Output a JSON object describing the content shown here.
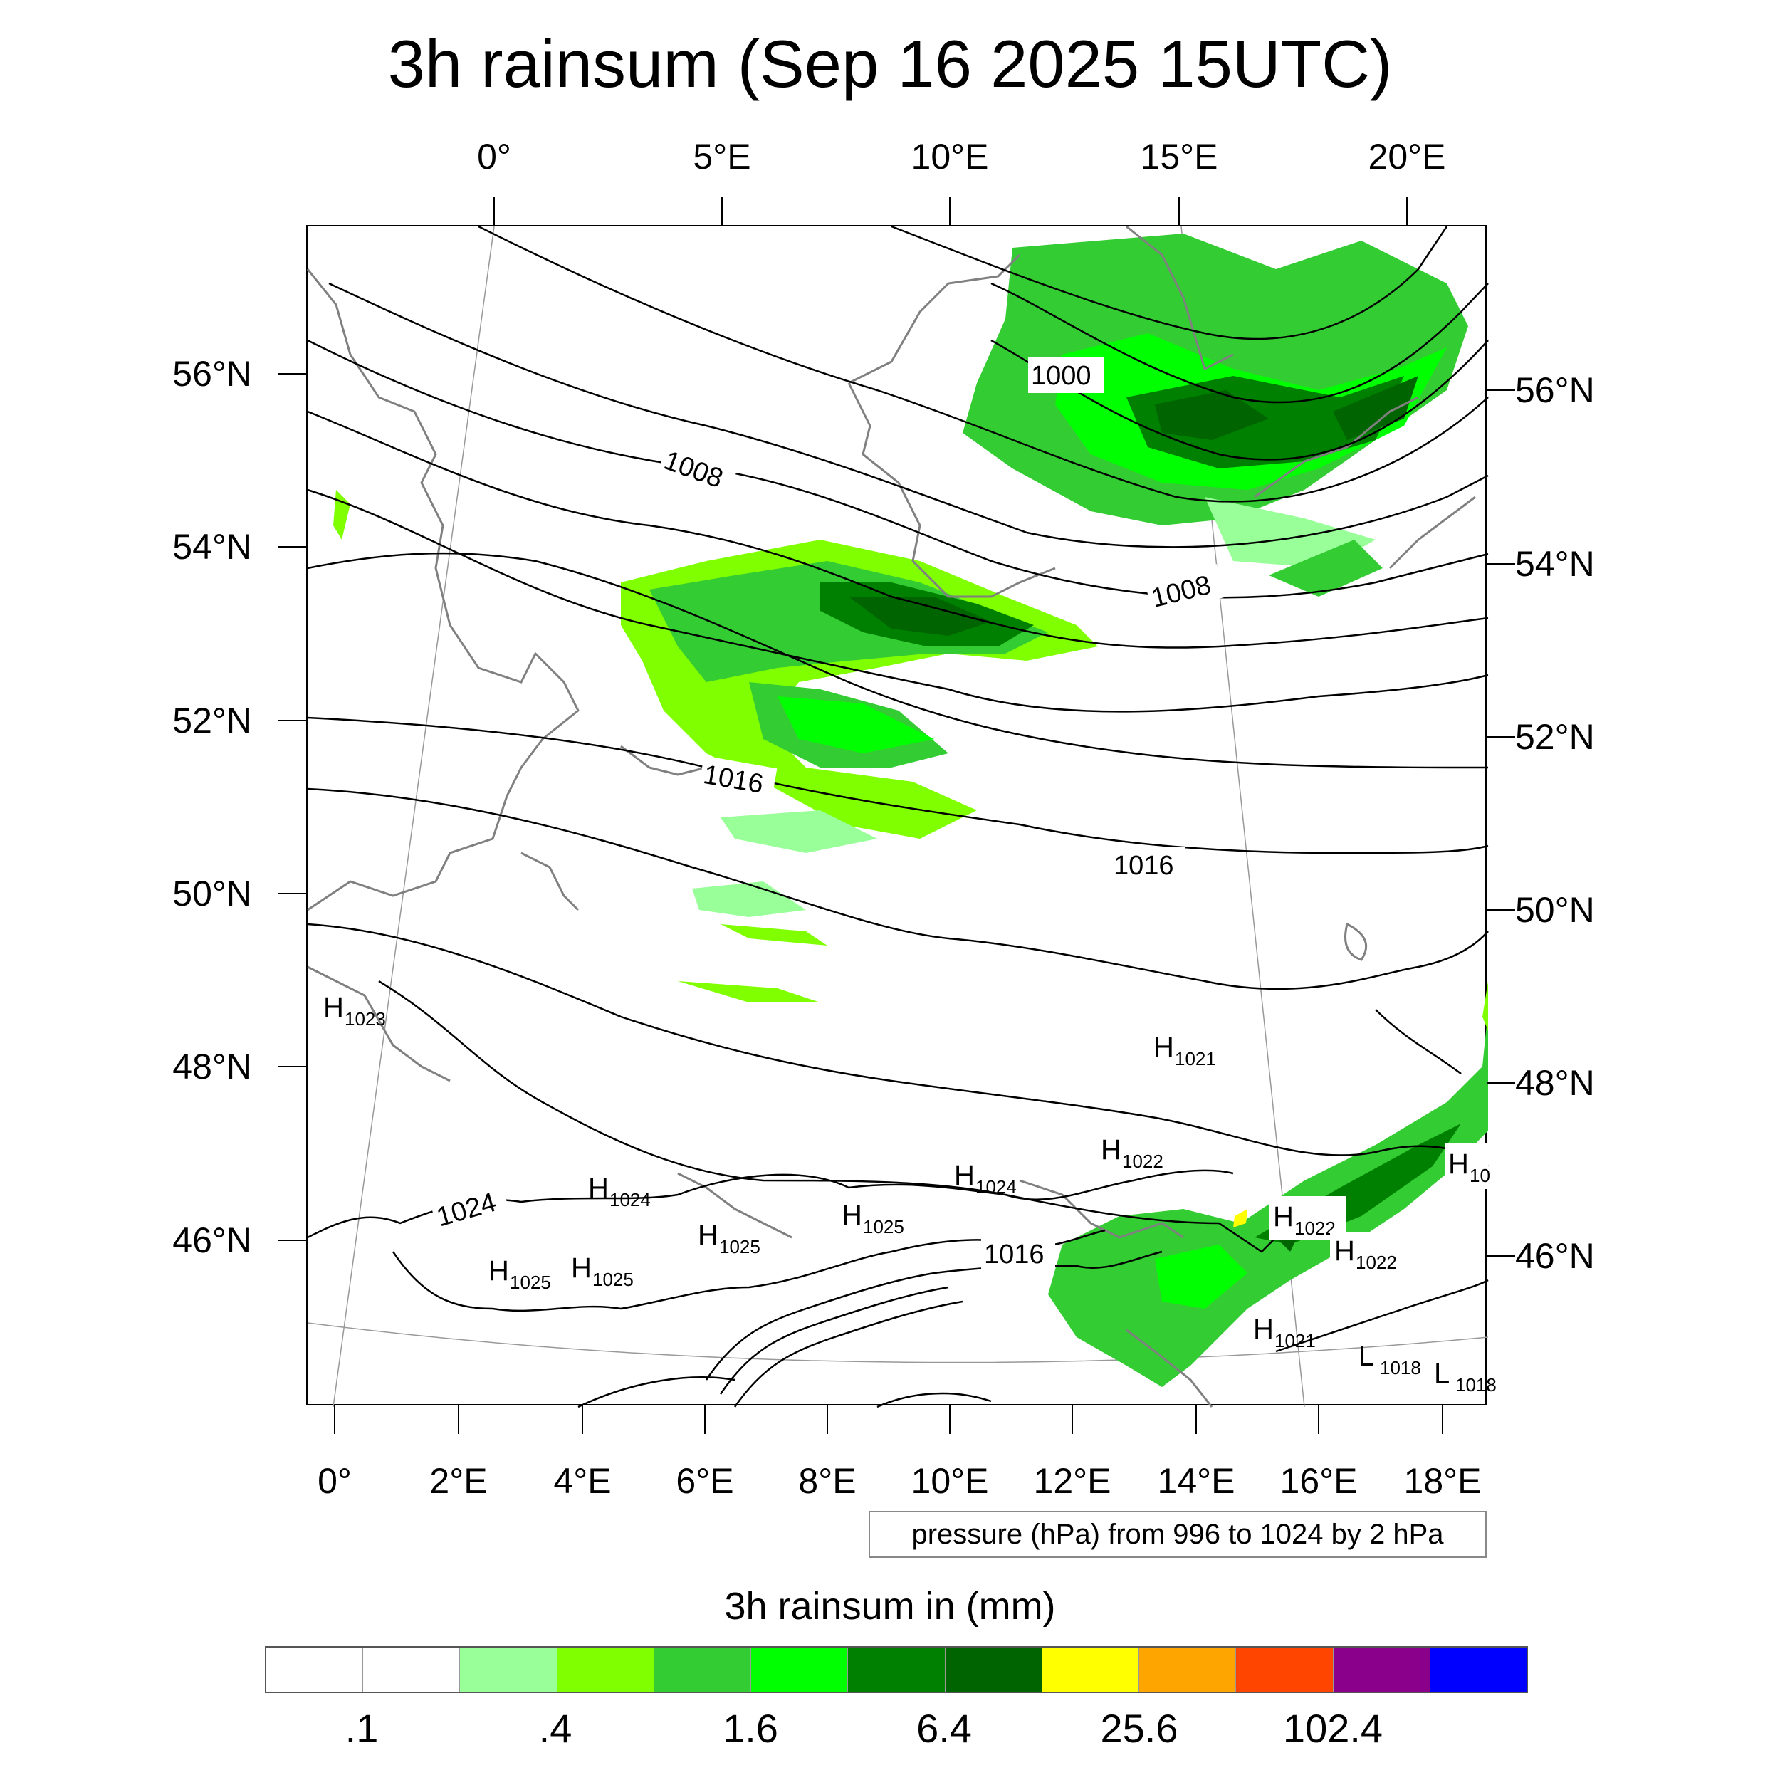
{
  "title": "3h rainsum (Sep 16 2025 15UTC)",
  "lon_labels_top": [
    "0°",
    "5°E",
    "10°E",
    "15°E",
    "20°E"
  ],
  "lon_labels_bottom": [
    "0°",
    "2°E",
    "4°E",
    "6°E",
    "8°E",
    "10°E",
    "12°E",
    "14°E",
    "16°E",
    "18°E"
  ],
  "lat_labels_left": [
    "56°N",
    "54°N",
    "52°N",
    "50°N",
    "48°N",
    "46°N"
  ],
  "lat_labels_right": [
    "56°N",
    "54°N",
    "52°N",
    "50°N",
    "48°N",
    "46°N"
  ],
  "pressure_note": "pressure (hPa) from 996 to 1024 by 2 hPa",
  "colorbar": {
    "title": "3h rainsum in (mm)",
    "labels": [
      ".1",
      ".4",
      "1.6",
      "6.4",
      "25.6",
      "102.4"
    ],
    "colors": [
      "#ffffff",
      "#ffffff",
      "#99ff99",
      "#80ff00",
      "#33cc33",
      "#00ff00",
      "#008000",
      "#006400",
      "#ffff00",
      "#ffa500",
      "#ff4500",
      "#8b008b",
      "#0000ff"
    ]
  },
  "isobar_labels": [
    {
      "id": "1000",
      "text": "1000"
    },
    {
      "id": "1008a",
      "text": "1008"
    },
    {
      "id": "1008b",
      "text": "1008"
    },
    {
      "id": "1016a",
      "text": "1016"
    },
    {
      "id": "1016b",
      "text": "1016"
    },
    {
      "id": "1016c",
      "text": "1016"
    },
    {
      "id": "1024",
      "text": "1024"
    }
  ],
  "pressure_centers": [
    {
      "type": "H",
      "value": "1023"
    },
    {
      "type": "H",
      "value": "1021"
    },
    {
      "type": "H",
      "value": "1022"
    },
    {
      "type": "H",
      "value": "1024"
    },
    {
      "type": "H",
      "value": "1024"
    },
    {
      "type": "H",
      "value": "1025"
    },
    {
      "type": "H",
      "value": "1025"
    },
    {
      "type": "H",
      "value": "1025"
    },
    {
      "type": "H",
      "value": "1025"
    },
    {
      "type": "H",
      "value": "1022"
    },
    {
      "type": "H",
      "value": "1022"
    },
    {
      "type": "H",
      "value": "1021"
    },
    {
      "type": "L",
      "value": "1018"
    },
    {
      "type": "L",
      "value": "1018"
    },
    {
      "type": "H",
      "value": "10"
    }
  ]
}
